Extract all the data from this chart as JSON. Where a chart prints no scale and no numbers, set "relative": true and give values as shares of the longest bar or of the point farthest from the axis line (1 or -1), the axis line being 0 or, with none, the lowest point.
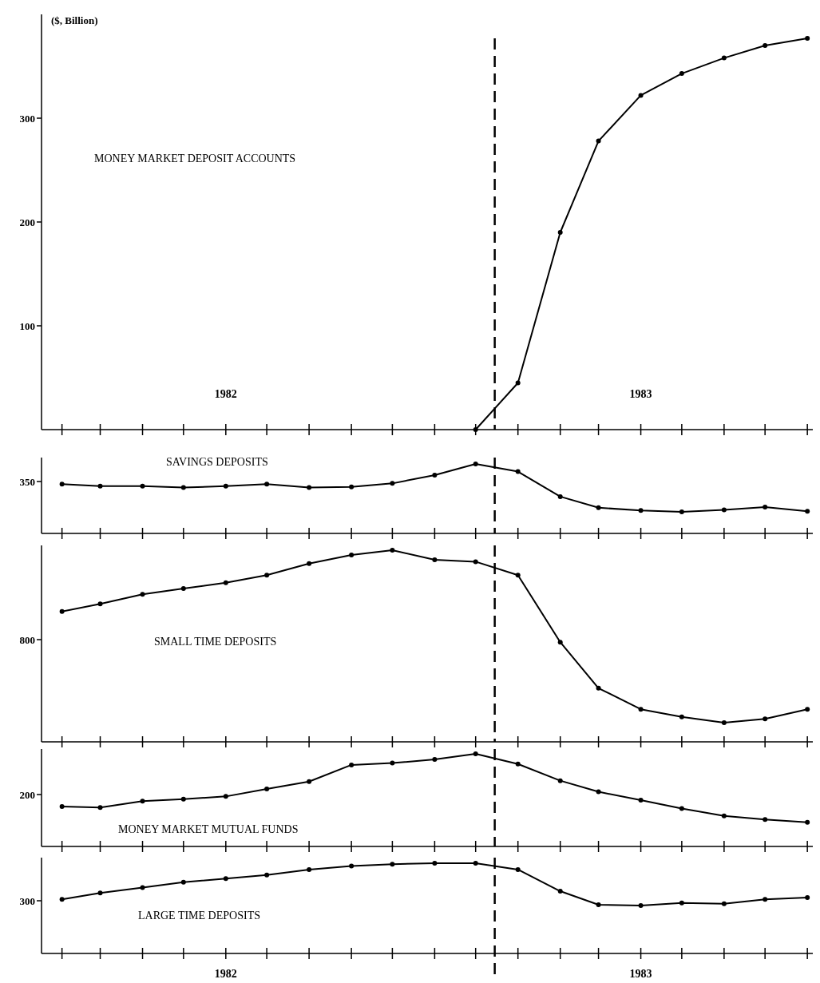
{
  "chart_data": [
    {
      "type": "line",
      "title": "MONEY MARKET DEPOSIT ACCOUNTS",
      "ylabel": "($, Billion)",
      "xlim": [
        "1982-01-17",
        "1983-08-05"
      ],
      "ylim": [
        0,
        400
      ],
      "yticks": [
        100,
        200,
        300
      ],
      "xticks": [
        {
          "value": "1982-02",
          "label": null
        },
        {
          "value": "1982-03",
          "label": null
        },
        {
          "value": "1982-04",
          "label": null
        },
        {
          "value": "1982-05",
          "label": null
        },
        {
          "value": "1982-06",
          "label": "1982"
        },
        {
          "value": "1982-07",
          "label": null
        },
        {
          "value": "1982-08",
          "label": null
        },
        {
          "value": "1982-09",
          "label": null
        },
        {
          "value": "1982-10",
          "label": null
        },
        {
          "value": "1982-11",
          "label": null
        },
        {
          "value": "1982-12",
          "label": null
        },
        {
          "value": "1983-01",
          "label": null
        },
        {
          "value": "1983-02",
          "label": null
        },
        {
          "value": "1983-03",
          "label": null
        },
        {
          "value": "1983-04",
          "label": "1983"
        },
        {
          "value": "1983-05",
          "label": null
        },
        {
          "value": "1983-06",
          "label": null
        },
        {
          "value": "1983-07",
          "label": null
        },
        {
          "value": "1983-08",
          "label": null
        }
      ],
      "series": [
        {
          "color": "#000000",
          "x": [
            "1982-12",
            "1983-01",
            "1983-02",
            "1983-03",
            "1983-04",
            "1983-05",
            "1983-06",
            "1983-07",
            "1983-08"
          ],
          "values": [
            0,
            45,
            190,
            278,
            322,
            343,
            358,
            370,
            377
          ]
        }
      ],
      "marker": "circle",
      "grid": false,
      "ref_lines": [
        {
          "axis": "x",
          "value": "1982-12-15",
          "line_style": "dashed"
        }
      ]
    },
    {
      "type": "line",
      "title": "SAVINGS DEPOSITS",
      "relative": true,
      "xlim": [
        "1982-01-17",
        "1983-08-05"
      ],
      "tick_labels": false,
      "annotations": [
        "350"
      ],
      "xticks": [
        {
          "value": "1982-02",
          "label": null
        },
        {
          "value": "1982-03",
          "label": null
        },
        {
          "value": "1982-04",
          "label": null
        },
        {
          "value": "1982-05",
          "label": null
        },
        {
          "value": "1982-06",
          "label": null
        },
        {
          "value": "1982-07",
          "label": null
        },
        {
          "value": "1982-08",
          "label": null
        },
        {
          "value": "1982-09",
          "label": null
        },
        {
          "value": "1982-10",
          "label": null
        },
        {
          "value": "1982-11",
          "label": null
        },
        {
          "value": "1982-12",
          "label": null
        },
        {
          "value": "1983-01",
          "label": null
        },
        {
          "value": "1983-02",
          "label": null
        },
        {
          "value": "1983-03",
          "label": null
        },
        {
          "value": "1983-04",
          "label": null
        },
        {
          "value": "1983-05",
          "label": null
        },
        {
          "value": "1983-06",
          "label": null
        },
        {
          "value": "1983-07",
          "label": null
        },
        {
          "value": "1983-08",
          "label": null
        }
      ],
      "x": [
        "1982-02",
        "1982-03",
        "1982-04",
        "1982-05",
        "1982-06",
        "1982-07",
        "1982-08",
        "1982-09",
        "1982-10",
        "1982-11",
        "1982-12",
        "1983-01",
        "1983-02",
        "1983-03",
        "1983-04",
        "1983-05",
        "1983-06",
        "1983-07",
        "1983-08"
      ],
      "series": [
        {
          "color": "#000000",
          "values": [
            0.71,
            0.68,
            0.68,
            0.66,
            0.68,
            0.71,
            0.66,
            0.67,
            0.72,
            0.84,
            1,
            0.89,
            0.53,
            0.37,
            0.33,
            0.31,
            0.34,
            0.38,
            0.32
          ]
        }
      ],
      "marker": "circle",
      "grid": false,
      "ref_lines": [
        {
          "axis": "x",
          "value": "1982-12-15",
          "line_style": "dashed"
        }
      ]
    },
    {
      "type": "line",
      "title": "SMALL TIME DEPOSITS",
      "relative": true,
      "xlim": [
        "1982-01-17",
        "1983-08-05"
      ],
      "tick_labels": false,
      "annotations": [
        "800"
      ],
      "xticks": [
        {
          "value": "1982-02",
          "label": null
        },
        {
          "value": "1982-03",
          "label": null
        },
        {
          "value": "1982-04",
          "label": null
        },
        {
          "value": "1982-05",
          "label": null
        },
        {
          "value": "1982-06",
          "label": null
        },
        {
          "value": "1982-07",
          "label": null
        },
        {
          "value": "1982-08",
          "label": null
        },
        {
          "value": "1982-09",
          "label": null
        },
        {
          "value": "1982-10",
          "label": null
        },
        {
          "value": "1982-11",
          "label": null
        },
        {
          "value": "1982-12",
          "label": null
        },
        {
          "value": "1983-01",
          "label": null
        },
        {
          "value": "1983-02",
          "label": null
        },
        {
          "value": "1983-03",
          "label": null
        },
        {
          "value": "1983-04",
          "label": null
        },
        {
          "value": "1983-05",
          "label": null
        },
        {
          "value": "1983-06",
          "label": null
        },
        {
          "value": "1983-07",
          "label": null
        },
        {
          "value": "1983-08",
          "label": null
        }
      ],
      "x": [
        "1982-02",
        "1982-03",
        "1982-04",
        "1982-05",
        "1982-06",
        "1982-07",
        "1982-08",
        "1982-09",
        "1982-10",
        "1982-11",
        "1982-12",
        "1983-01",
        "1983-02",
        "1983-03",
        "1983-04",
        "1983-05",
        "1983-06",
        "1983-07",
        "1983-08"
      ],
      "series": [
        {
          "color": "#000000",
          "values": [
            0.68,
            0.72,
            0.77,
            0.8,
            0.83,
            0.87,
            0.93,
            0.975,
            1,
            0.95,
            0.94,
            0.87,
            0.52,
            0.28,
            0.17,
            0.13,
            0.1,
            0.12,
            0.17
          ]
        }
      ],
      "marker": "circle",
      "grid": false,
      "ref_lines": [
        {
          "axis": "x",
          "value": "1982-12-15",
          "line_style": "dashed"
        }
      ]
    },
    {
      "type": "line",
      "title": "MONEY MARKET MUTUAL FUNDS",
      "relative": true,
      "xlim": [
        "1982-01-17",
        "1983-08-05"
      ],
      "tick_labels": false,
      "annotations": [
        "200"
      ],
      "xticks": [
        {
          "value": "1982-02",
          "label": null
        },
        {
          "value": "1982-03",
          "label": null
        },
        {
          "value": "1982-04",
          "label": null
        },
        {
          "value": "1982-05",
          "label": null
        },
        {
          "value": "1982-06",
          "label": null
        },
        {
          "value": "1982-07",
          "label": null
        },
        {
          "value": "1982-08",
          "label": null
        },
        {
          "value": "1982-09",
          "label": null
        },
        {
          "value": "1982-10",
          "label": null
        },
        {
          "value": "1982-11",
          "label": null
        },
        {
          "value": "1982-12",
          "label": null
        },
        {
          "value": "1983-01",
          "label": null
        },
        {
          "value": "1983-02",
          "label": null
        },
        {
          "value": "1983-03",
          "label": null
        },
        {
          "value": "1983-04",
          "label": null
        },
        {
          "value": "1983-05",
          "label": null
        },
        {
          "value": "1983-06",
          "label": null
        },
        {
          "value": "1983-07",
          "label": null
        },
        {
          "value": "1983-08",
          "label": null
        }
      ],
      "x": [
        "1982-02",
        "1982-03",
        "1982-04",
        "1982-05",
        "1982-06",
        "1982-07",
        "1982-08",
        "1982-09",
        "1982-10",
        "1982-11",
        "1982-12",
        "1983-01",
        "1983-02",
        "1983-03",
        "1983-04",
        "1983-05",
        "1983-06",
        "1983-07",
        "1983-08"
      ],
      "series": [
        {
          "color": "#000000",
          "values": [
            0.43,
            0.42,
            0.49,
            0.51,
            0.54,
            0.62,
            0.7,
            0.88,
            0.9,
            0.94,
            1,
            0.89,
            0.71,
            0.59,
            0.5,
            0.41,
            0.33,
            0.29,
            0.26
          ]
        }
      ],
      "marker": "circle",
      "grid": false,
      "ref_lines": [
        {
          "axis": "x",
          "value": "1982-12-15",
          "line_style": "dashed"
        }
      ]
    },
    {
      "type": "line",
      "title": "LARGE TIME DEPOSITS",
      "relative": true,
      "xlim": [
        "1982-01-17",
        "1983-08-05"
      ],
      "tick_labels": "x",
      "annotations": [
        "300"
      ],
      "xticks": [
        {
          "value": "1982-02",
          "label": null
        },
        {
          "value": "1982-03",
          "label": null
        },
        {
          "value": "1982-04",
          "label": null
        },
        {
          "value": "1982-05",
          "label": null
        },
        {
          "value": "1982-06",
          "label": "1982"
        },
        {
          "value": "1982-07",
          "label": null
        },
        {
          "value": "1982-08",
          "label": null
        },
        {
          "value": "1982-09",
          "label": null
        },
        {
          "value": "1982-10",
          "label": null
        },
        {
          "value": "1982-11",
          "label": null
        },
        {
          "value": "1982-12",
          "label": null
        },
        {
          "value": "1983-01",
          "label": null
        },
        {
          "value": "1983-02",
          "label": null
        },
        {
          "value": "1983-03",
          "label": null
        },
        {
          "value": "1983-04",
          "label": "1983"
        },
        {
          "value": "1983-05",
          "label": null
        },
        {
          "value": "1983-06",
          "label": null
        },
        {
          "value": "1983-07",
          "label": null
        },
        {
          "value": "1983-08",
          "label": null
        }
      ],
      "x": [
        "1982-02",
        "1982-03",
        "1982-04",
        "1982-05",
        "1982-06",
        "1982-07",
        "1982-08",
        "1982-09",
        "1982-10",
        "1982-11",
        "1982-12",
        "1983-01",
        "1983-02",
        "1983-03",
        "1983-04",
        "1983-05",
        "1983-06",
        "1983-07",
        "1983-08"
      ],
      "series": [
        {
          "color": "#000000",
          "values": [
            0.6,
            0.67,
            0.73,
            0.79,
            0.83,
            0.87,
            0.93,
            0.97,
            0.99,
            1,
            1,
            0.93,
            0.69,
            0.54,
            0.53,
            0.56,
            0.55,
            0.6,
            0.62
          ]
        }
      ],
      "marker": "circle",
      "grid": false,
      "ref_lines": [
        {
          "axis": "x",
          "value": "1982-12-15",
          "line_style": "dashed"
        }
      ]
    }
  ]
}
